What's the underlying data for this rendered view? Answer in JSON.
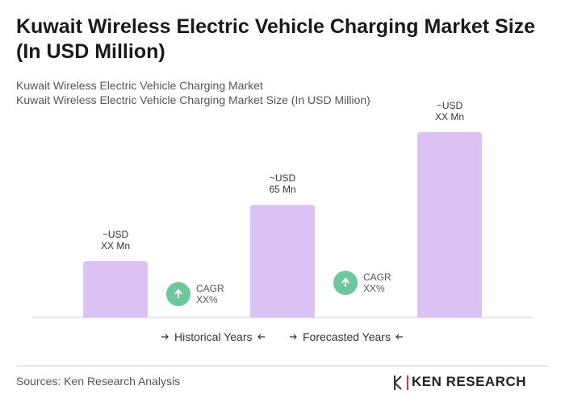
{
  "chart_data": {
    "type": "bar",
    "title": "Kuwait Wireless Electric Vehicle Charging Market Size (In USD Million)",
    "subtitle": [
      "Kuwait Wireless Electric Vehicle Charging Market",
      "Kuwait Wireless Electric Vehicle Charging Market Size (In USD Million)"
    ],
    "categories": [
      null,
      null,
      null
    ],
    "values": [
      32.5,
      65,
      107
    ],
    "value_labels": [
      "~USD\nXX Mn",
      "~USD\n65 Mn",
      "~USD\nXX Mn"
    ],
    "color": "#dcc1f5",
    "cagr_labels": [
      "CAGR\nXX%",
      "CAGR\nXX%"
    ],
    "x_groups": [
      "Historical Years",
      "Forecasted Years"
    ],
    "source": "Sources: Ken Research Analysis",
    "logo": "KEN RESEARCH"
  }
}
